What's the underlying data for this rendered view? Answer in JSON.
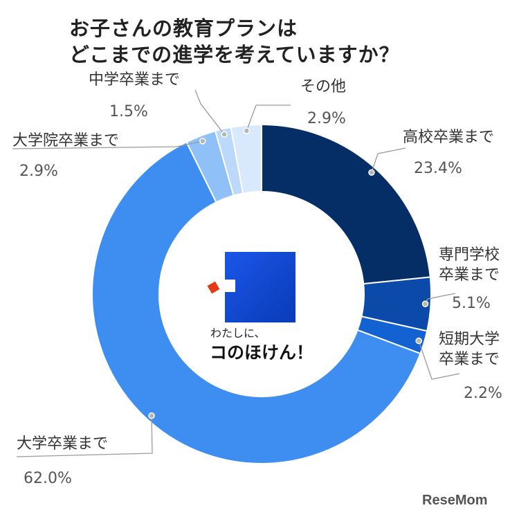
{
  "title_lines": [
    "お子さんの教育プランは",
    "どこまでの進学を考えていますか？"
  ],
  "chart_data": {
    "type": "pie",
    "title": "お子さんの教育プランは どこまでの進学を考えていますか？",
    "slices": [
      {
        "label": "高校卒業まで",
        "value": 23.4,
        "display": "23.4%",
        "color": "#062e66"
      },
      {
        "label": "専門学校卒業まで",
        "value": 5.1,
        "display": "5.1%",
        "color": "#0b4aa8"
      },
      {
        "label": "短期大学卒業まで",
        "value": 2.2,
        "display": "2.2%",
        "color": "#1362d2"
      },
      {
        "label": "大学卒業まで",
        "value": 62.0,
        "display": "62.0%",
        "color": "#3d8ef0"
      },
      {
        "label": "大学院卒業まで",
        "value": 2.9,
        "display": "2.9%",
        "color": "#8fc0f7"
      },
      {
        "label": "中学卒業まで",
        "value": 1.5,
        "display": "1.5%",
        "color": "#bcd9fb"
      },
      {
        "label": "その他",
        "value": 2.9,
        "display": "2.9%",
        "color": "#d8e9fd"
      }
    ]
  },
  "center_brand": {
    "small": "わたしに、",
    "big": "コのほけん！"
  },
  "watermark": "ReseMom"
}
